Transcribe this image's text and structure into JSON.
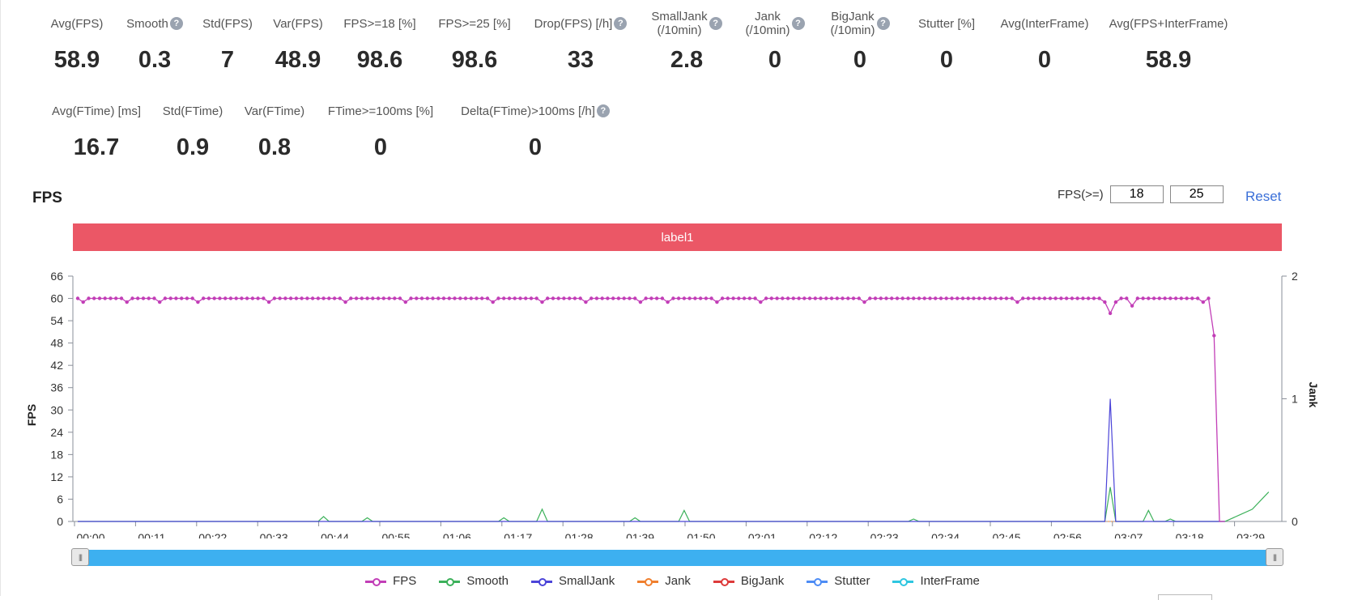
{
  "metrics_row1": [
    {
      "label": "Avg(FPS)",
      "value": "58.9",
      "help": false
    },
    {
      "label": "Smooth",
      "value": "0.3",
      "help": true
    },
    {
      "label": "Std(FPS)",
      "value": "7",
      "help": false
    },
    {
      "label": "Var(FPS)",
      "value": "48.9",
      "help": false
    },
    {
      "label": "FPS>=18 [%]",
      "value": "98.6",
      "help": false
    },
    {
      "label": "FPS>=25 [%]",
      "value": "98.6",
      "help": false
    },
    {
      "label": "Drop(FPS) [/h]",
      "value": "33",
      "help": true
    },
    {
      "label": "SmallJank\n(/10min)",
      "value": "2.8",
      "help": true
    },
    {
      "label": "Jank\n(/10min)",
      "value": "0",
      "help": true
    },
    {
      "label": "BigJank\n(/10min)",
      "value": "0",
      "help": true
    },
    {
      "label": "Stutter [%]",
      "value": "0",
      "help": false
    },
    {
      "label": "Avg(InterFrame)",
      "value": "0",
      "help": false
    },
    {
      "label": "Avg(FPS+InterFrame)",
      "value": "58.9",
      "help": false
    }
  ],
  "metrics_row2": [
    {
      "label": "Avg(FTime) [ms]",
      "value": "16.7",
      "help": false
    },
    {
      "label": "Std(FTime)",
      "value": "0.9",
      "help": false
    },
    {
      "label": "Var(FTime)",
      "value": "0.8",
      "help": false
    },
    {
      "label": "FTime>=100ms [%]",
      "value": "0",
      "help": false
    },
    {
      "label": "Delta(FTime)>100ms [/h]",
      "value": "0",
      "help": true
    }
  ],
  "section_title": "FPS",
  "threshold": {
    "label": "FPS(>=)",
    "value1": "18",
    "value2": "25",
    "reset_label": "Reset"
  },
  "label_bar": "label1",
  "colors": {
    "FPS": "#c23eb7",
    "Smooth": "#3cb15a",
    "SmallJank": "#4b44d8",
    "Jank": "#f07f2e",
    "BigJank": "#dd3a3a",
    "Stutter": "#4d8cf5",
    "InterFrame": "#2ec6e0",
    "label_bar": "#eb5766",
    "slider": "#3db0f0"
  },
  "chart_data": {
    "type": "line",
    "ylabel": "FPS",
    "y2label": "Jank",
    "ylim": [
      0,
      66
    ],
    "yticks": [
      0,
      6,
      12,
      18,
      24,
      30,
      36,
      42,
      48,
      54,
      60,
      66
    ],
    "y2lim": [
      0,
      2
    ],
    "y2ticks": [
      0,
      1,
      2
    ],
    "xlim_seconds": [
      0,
      221
    ],
    "xticks": [
      "00:00",
      "00:11",
      "00:22",
      "00:33",
      "00:44",
      "00:55",
      "01:06",
      "01:17",
      "01:28",
      "01:39",
      "01:50",
      "02:01",
      "02:12",
      "02:23",
      "02:34",
      "02:45",
      "02:56",
      "03:07",
      "03:18",
      "03:29"
    ],
    "grid": false,
    "legend_position": "bottom",
    "series": [
      {
        "name": "FPS",
        "axis": "left",
        "markers": true,
        "baseline": 60,
        "dips_59": [
          1,
          9,
          15,
          22,
          35,
          49,
          60,
          76,
          85,
          93,
          103,
          108,
          117,
          125,
          144,
          172,
          209,
          215
        ],
        "overrides": [
          [
            188,
            59
          ],
          [
            189,
            56
          ],
          [
            190,
            59
          ],
          [
            193,
            58
          ],
          [
            206,
            59
          ],
          [
            207,
            60
          ],
          [
            208,
            50
          ],
          [
            209,
            0
          ],
          [
            210,
            0
          ]
        ]
      },
      {
        "name": "Smooth",
        "axis": "right",
        "spikes": [
          [
            45,
            0.04
          ],
          [
            53,
            0.03
          ],
          [
            78,
            0.03
          ],
          [
            85,
            0.1
          ],
          [
            102,
            0.03
          ],
          [
            111,
            0.09
          ],
          [
            153,
            0.02
          ],
          [
            189,
            0.28
          ],
          [
            196,
            0.09
          ],
          [
            200,
            0.02
          ],
          [
            215,
            0.1
          ],
          [
            218,
            0.24
          ]
        ]
      },
      {
        "name": "SmallJank",
        "axis": "right",
        "spikes": [
          [
            189,
            1.0
          ]
        ]
      },
      {
        "name": "Jank",
        "axis": "right",
        "values": "all 0"
      },
      {
        "name": "BigJank",
        "axis": "right",
        "values": "all 0"
      },
      {
        "name": "Stutter",
        "axis": "right",
        "values": "all 0"
      },
      {
        "name": "InterFrame",
        "axis": "right",
        "values": "all 0"
      }
    ]
  }
}
